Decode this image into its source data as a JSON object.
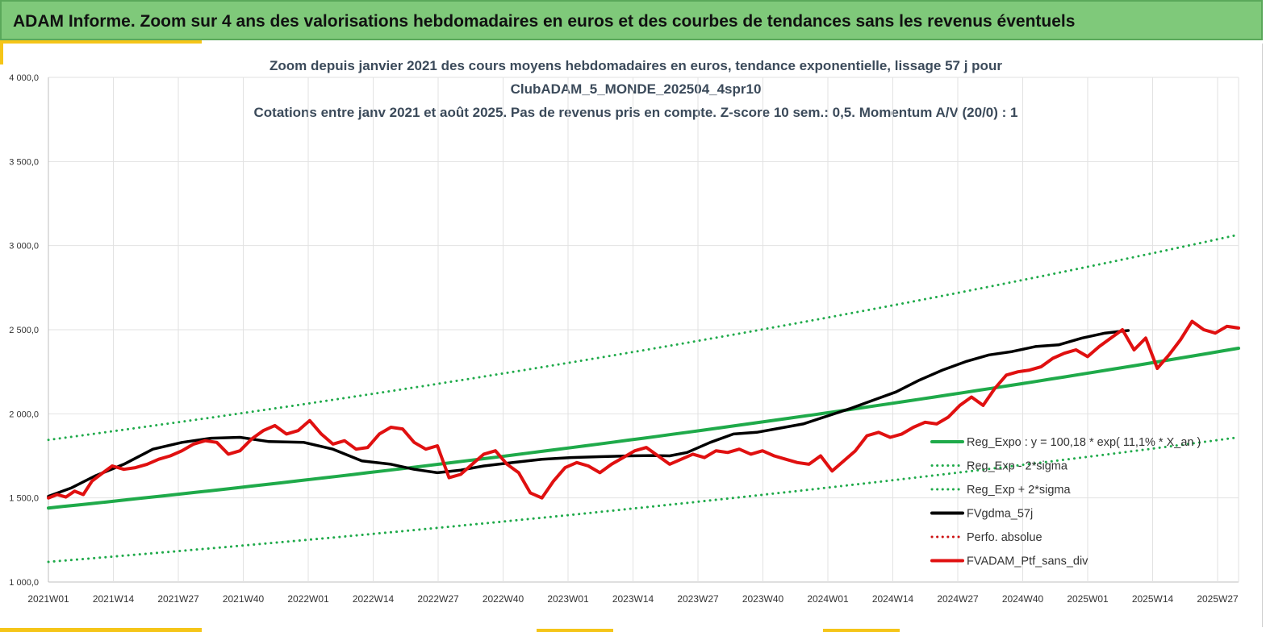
{
  "banner": {
    "title": "ADAM Informe. Zoom sur 4 ans des valorisations hebdomadaires en euros et des courbes de tendances sans les revenus éventuels"
  },
  "chart_data": {
    "type": "line",
    "title_lines": [
      "Zoom depuis janvier 2021 des cours moyens hebdomadaires  en euros, tendance exponentielle, lissage 57 j pour",
      "ClubADAM_5_MONDE_202504_4spr10",
      "Cotations  entre janv 2021 et août 2025. Pas de revenus pris en compte. Z-score 10 sem.: 0,5. Momentum A/V (20/0) : 1"
    ],
    "ylim": [
      1000,
      4000
    ],
    "yticks": [
      "1 000,0",
      "1 500,0",
      "2 000,0",
      "2 500,0",
      "3 000,0",
      "3 500,0",
      "4 000,0"
    ],
    "xticks": [
      "2021W01",
      "2021W14",
      "2021W27",
      "2021W40",
      "2022W01",
      "2022W14",
      "2022W27",
      "2022W40",
      "2023W01",
      "2023W14",
      "2023W27",
      "2023W40",
      "2024W01",
      "2024W14",
      "2024W27",
      "2024W40",
      "2025W01",
      "2025W14",
      "2025W27"
    ],
    "grid": true,
    "legend_position": "bottom-right",
    "x_weeks": [
      0,
      239
    ],
    "series": [
      {
        "name": "Reg_Expo : y = 100,18 * exp( 11,1% * X_an )",
        "color": "#1faa4a",
        "style": "solid",
        "start": 1440,
        "end": 2390
      },
      {
        "name": "Reg_Exp - 2*sigma",
        "color": "#1faa4a",
        "style": "dotted",
        "start": 1120,
        "end": 1860
      },
      {
        "name": "Reg_Exp + 2*sigma",
        "color": "#1faa4a",
        "style": "dotted",
        "start": 1845,
        "end": 3065
      },
      {
        "name": "FVgdma_57j",
        "color": "#000000",
        "style": "solid",
        "points": [
          [
            0,
            1510
          ],
          [
            8,
            1560
          ],
          [
            16,
            1630
          ],
          [
            26,
            1700
          ],
          [
            36,
            1790
          ],
          [
            46,
            1830
          ],
          [
            56,
            1855
          ],
          [
            66,
            1860
          ],
          [
            76,
            1835
          ],
          [
            88,
            1830
          ],
          [
            98,
            1790
          ],
          [
            108,
            1720
          ],
          [
            118,
            1700
          ],
          [
            126,
            1670
          ],
          [
            134,
            1650
          ],
          [
            142,
            1665
          ],
          [
            150,
            1690
          ],
          [
            160,
            1710
          ],
          [
            170,
            1730
          ],
          [
            180,
            1740
          ],
          [
            190,
            1745
          ],
          [
            200,
            1750
          ],
          [
            208,
            1752
          ],
          [
            214,
            1750
          ],
          [
            220,
            1770
          ],
          [
            228,
            1830
          ],
          [
            236,
            1880
          ],
          [
            244,
            1890
          ],
          [
            252,
            1915
          ],
          [
            260,
            1940
          ],
          [
            268,
            1985
          ],
          [
            276,
            2030
          ],
          [
            284,
            2080
          ],
          [
            292,
            2130
          ],
          [
            300,
            2200
          ],
          [
            308,
            2260
          ],
          [
            316,
            2310
          ],
          [
            324,
            2350
          ],
          [
            332,
            2370
          ],
          [
            340,
            2400
          ],
          [
            348,
            2410
          ],
          [
            356,
            2450
          ],
          [
            364,
            2480
          ],
          [
            372,
            2495
          ]
        ]
      },
      {
        "name": "Perfo. absolue",
        "color": "#cc1111",
        "style": "dotted",
        "points": []
      },
      {
        "name": "FVADAM_Ptf_sans_div",
        "color": "#e01010",
        "style": "solid",
        "points": [
          [
            0,
            1500
          ],
          [
            3,
            1520
          ],
          [
            6,
            1505
          ],
          [
            9,
            1540
          ],
          [
            12,
            1520
          ],
          [
            15,
            1600
          ],
          [
            18,
            1640
          ],
          [
            22,
            1690
          ],
          [
            26,
            1670
          ],
          [
            30,
            1680
          ],
          [
            34,
            1700
          ],
          [
            38,
            1730
          ],
          [
            42,
            1750
          ],
          [
            46,
            1780
          ],
          [
            50,
            1820
          ],
          [
            54,
            1840
          ],
          [
            58,
            1830
          ],
          [
            62,
            1760
          ],
          [
            66,
            1780
          ],
          [
            70,
            1850
          ],
          [
            74,
            1900
          ],
          [
            78,
            1930
          ],
          [
            82,
            1880
          ],
          [
            86,
            1900
          ],
          [
            90,
            1960
          ],
          [
            94,
            1880
          ],
          [
            98,
            1820
          ],
          [
            102,
            1840
          ],
          [
            106,
            1790
          ],
          [
            110,
            1800
          ],
          [
            114,
            1880
          ],
          [
            118,
            1920
          ],
          [
            122,
            1910
          ],
          [
            126,
            1830
          ],
          [
            130,
            1790
          ],
          [
            134,
            1810
          ],
          [
            138,
            1620
          ],
          [
            142,
            1640
          ],
          [
            146,
            1700
          ],
          [
            150,
            1760
          ],
          [
            154,
            1780
          ],
          [
            158,
            1700
          ],
          [
            162,
            1650
          ],
          [
            166,
            1530
          ],
          [
            170,
            1500
          ],
          [
            174,
            1600
          ],
          [
            178,
            1680
          ],
          [
            182,
            1710
          ],
          [
            186,
            1690
          ],
          [
            190,
            1650
          ],
          [
            194,
            1700
          ],
          [
            198,
            1740
          ],
          [
            202,
            1780
          ],
          [
            206,
            1800
          ],
          [
            210,
            1750
          ],
          [
            214,
            1700
          ],
          [
            218,
            1730
          ],
          [
            222,
            1760
          ],
          [
            226,
            1740
          ],
          [
            230,
            1780
          ],
          [
            234,
            1770
          ],
          [
            238,
            1790
          ],
          [
            242,
            1760
          ],
          [
            246,
            1780
          ],
          [
            250,
            1750
          ],
          [
            254,
            1730
          ],
          [
            258,
            1710
          ],
          [
            262,
            1700
          ],
          [
            266,
            1750
          ],
          [
            270,
            1660
          ],
          [
            274,
            1720
          ],
          [
            278,
            1780
          ],
          [
            282,
            1870
          ],
          [
            286,
            1890
          ],
          [
            290,
            1860
          ],
          [
            294,
            1880
          ],
          [
            298,
            1920
          ],
          [
            302,
            1950
          ],
          [
            306,
            1940
          ],
          [
            310,
            1980
          ],
          [
            314,
            2050
          ],
          [
            318,
            2100
          ],
          [
            322,
            2050
          ],
          [
            326,
            2150
          ],
          [
            330,
            2230
          ],
          [
            334,
            2250
          ],
          [
            338,
            2260
          ],
          [
            342,
            2280
          ],
          [
            346,
            2330
          ],
          [
            350,
            2360
          ],
          [
            354,
            2380
          ],
          [
            358,
            2340
          ],
          [
            362,
            2400
          ],
          [
            366,
            2450
          ],
          [
            370,
            2500
          ],
          [
            374,
            2380
          ],
          [
            378,
            2450
          ],
          [
            382,
            2270
          ],
          [
            386,
            2350
          ],
          [
            390,
            2440
          ],
          [
            394,
            2550
          ],
          [
            398,
            2500
          ],
          [
            402,
            2480
          ],
          [
            406,
            2520
          ],
          [
            410,
            2510
          ]
        ]
      }
    ]
  }
}
